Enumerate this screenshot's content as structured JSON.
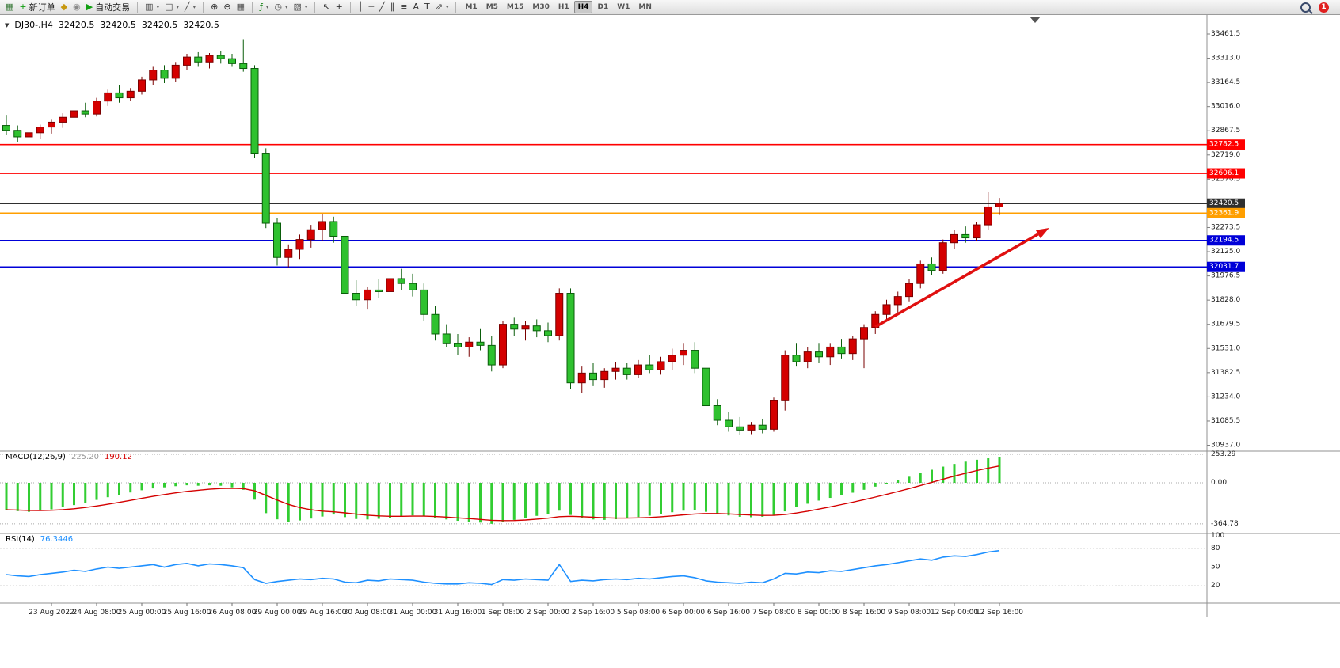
{
  "toolbar": {
    "notification_count": "1",
    "groups": [
      {
        "name": "standard",
        "items": [
          {
            "name": "new-chart-icon",
            "glyph": "▦",
            "color": "#3f7d3f"
          },
          {
            "name": "new-order-button",
            "glyph": "+",
            "color": "#0f9d0f",
            "label": "新订单"
          },
          {
            "name": "metaeditor-icon",
            "glyph": "◆",
            "color": "#c79810"
          },
          {
            "name": "broadcast-icon",
            "glyph": "◉",
            "color": "#8a8a8a"
          },
          {
            "name": "autotrading-button",
            "glyph": "▶",
            "color": "#12a012",
            "label": "自动交易"
          }
        ]
      },
      {
        "name": "chart-types",
        "items": [
          {
            "name": "bar-chart-icon",
            "glyph": "▥",
            "color": "#444444",
            "caret": true
          },
          {
            "name": "candlestick-chart-icon",
            "glyph": "◫",
            "color": "#444444",
            "caret": true
          },
          {
            "name": "line-chart-icon",
            "glyph": "╱",
            "color": "#444444",
            "caret": true
          }
        ]
      },
      {
        "name": "zoom",
        "items": [
          {
            "name": "zoom-in-icon",
            "glyph": "⊕",
            "color": "#333333"
          },
          {
            "name": "zoom-out-icon",
            "glyph": "⊖",
            "color": "#333333"
          },
          {
            "name": "tile-windows-icon",
            "glyph": "▦",
            "color": "#555555"
          }
        ]
      },
      {
        "name": "chart-tools",
        "items": [
          {
            "name": "indicators-icon",
            "glyph": "ƒ",
            "color": "#0a7d0a",
            "caret": true
          },
          {
            "name": "periods-icon",
            "glyph": "◷",
            "color": "#555555",
            "caret": true
          },
          {
            "name": "templates-icon",
            "glyph": "▧",
            "color": "#555555",
            "caret": true
          }
        ]
      },
      {
        "name": "cursor-tools",
        "items": [
          {
            "name": "cursor-icon",
            "glyph": "↖",
            "color": "#333333"
          },
          {
            "name": "crosshair-icon",
            "glyph": "+",
            "color": "#333333"
          }
        ]
      },
      {
        "name": "drawing-tools",
        "items": [
          {
            "name": "vertical-line-icon",
            "glyph": "│",
            "color": "#333333"
          },
          {
            "name": "horizontal-line-icon",
            "glyph": "─",
            "color": "#333333"
          },
          {
            "name": "trendline-icon",
            "glyph": "╱",
            "color": "#333333"
          },
          {
            "name": "channel-icon",
            "glyph": "∥",
            "color": "#333333"
          },
          {
            "name": "fibonacci-icon",
            "glyph": "≡",
            "color": "#333333"
          },
          {
            "name": "text-icon",
            "glyph": "A",
            "color": "#333333"
          },
          {
            "name": "label-icon",
            "glyph": "T",
            "color": "#333333"
          },
          {
            "name": "arrows-icon",
            "glyph": "⇗",
            "color": "#333333",
            "caret": true
          }
        ]
      },
      {
        "name": "timeframes",
        "items": [
          {
            "name": "timeframe-m1",
            "label": "M1"
          },
          {
            "name": "timeframe-m5",
            "label": "M5"
          },
          {
            "name": "timeframe-m15",
            "label": "M15"
          },
          {
            "name": "timeframe-m30",
            "label": "M30"
          },
          {
            "name": "timeframe-h1",
            "label": "H1"
          },
          {
            "name": "timeframe-h4",
            "label": "H4",
            "active": true
          },
          {
            "name": "timeframe-d1",
            "label": "D1"
          },
          {
            "name": "timeframe-w1",
            "label": "W1"
          },
          {
            "name": "timeframe-mn",
            "label": "MN"
          }
        ]
      }
    ]
  },
  "chart": {
    "title": {
      "toggle_glyph": "▼",
      "symbol_period": "DJ30-,H4",
      "open": "32420.5",
      "high": "32420.5",
      "low": "32420.5",
      "close": "32420.5"
    },
    "macd_header": {
      "name": "MACD(12,26,9)",
      "macd_value": "225.20",
      "signal_value": "190.12"
    },
    "rsi_header": {
      "name": "RSI(14)",
      "value": "76.3446"
    }
  },
  "colors": {
    "background": "#ffffff",
    "bull_candle": "#d40000",
    "bull_border": "#7a0000",
    "bear_candle": "#2fc12f",
    "bear_border": "#0a5d0a",
    "macd_histogram": "#32cd32",
    "macd_signal": "#d40000",
    "rsi_line": "#1e90ff",
    "grid_dotted": "#a8a8a8",
    "separator": "#909090",
    "axis_text": "#1a1a1a",
    "macd_value_color": "#9a9a9a",
    "signal_value_color": "#d40000",
    "rsi_value_color": "#1e90ff",
    "arrow_color": "#e01010",
    "badge_text": "#ffffff"
  },
  "chart_data": {
    "type": "candlestick",
    "symbol": "DJ30-",
    "timeframe": "H4",
    "price_axis": {
      "labels": [
        "33461.5",
        "33313.0",
        "33164.5",
        "33016.0",
        "32867.5",
        "32719.0",
        "32570.5",
        "32422.0",
        "32273.5",
        "32125.0",
        "31976.5",
        "31828.0",
        "31679.5",
        "31531.0",
        "31382.5",
        "31234.0",
        "31085.5",
        "30937.0"
      ]
    },
    "levels": [
      {
        "price": 32782.5,
        "label": "32782.5",
        "color": "#ff0000",
        "type": "resistance-line"
      },
      {
        "price": 32606.1,
        "label": "32606.1",
        "color": "#ff0000",
        "type": "resistance-line"
      },
      {
        "price": 32420.5,
        "label": "32420.5",
        "color": "#2f2f2f",
        "type": "current-price"
      },
      {
        "price": 32361.9,
        "label": "32361.9",
        "color": "#ff9f00",
        "type": "pivot-line"
      },
      {
        "price": 32194.5,
        "label": "32194.5",
        "color": "#0000d8",
        "type": "support-line"
      },
      {
        "price": 32031.7,
        "label": "32031.7",
        "color": "#0000d8",
        "type": "support-line"
      }
    ],
    "time_axis": {
      "labels": [
        "23 Aug 2022",
        "24 Aug 08:00",
        "25 Aug 00:00",
        "25 Aug 16:00",
        "26 Aug 08:00",
        "29 Aug 00:00",
        "29 Aug 16:00",
        "30 Aug 08:00",
        "31 Aug 00:00",
        "31 Aug 16:00",
        "1 Sep 08:00",
        "2 Sep 00:00",
        "2 Sep 16:00",
        "5 Sep 08:00",
        "6 Sep 00:00",
        "6 Sep 16:00",
        "7 Sep 08:00",
        "8 Sep 00:00",
        "8 Sep 16:00",
        "9 Sep 08:00",
        "12 Sep 00:00",
        "12 Sep 16:00"
      ]
    },
    "candles": [
      [
        32900,
        32965,
        32840,
        32870
      ],
      [
        32870,
        32900,
        32800,
        32830
      ],
      [
        32830,
        32870,
        32780,
        32855
      ],
      [
        32855,
        32905,
        32820,
        32890
      ],
      [
        32890,
        32940,
        32850,
        32920
      ],
      [
        32920,
        32975,
        32885,
        32950
      ],
      [
        32950,
        33010,
        32920,
        32990
      ],
      [
        32990,
        33040,
        32950,
        32970
      ],
      [
        32970,
        33070,
        32955,
        33050
      ],
      [
        33050,
        33120,
        33020,
        33100
      ],
      [
        33100,
        33150,
        33040,
        33070
      ],
      [
        33070,
        33130,
        33050,
        33110
      ],
      [
        33110,
        33200,
        33090,
        33180
      ],
      [
        33180,
        33260,
        33150,
        33240
      ],
      [
        33240,
        33270,
        33160,
        33190
      ],
      [
        33190,
        33290,
        33170,
        33270
      ],
      [
        33270,
        33340,
        33240,
        33320
      ],
      [
        33320,
        33350,
        33260,
        33290
      ],
      [
        33290,
        33345,
        33250,
        33330
      ],
      [
        33330,
        33355,
        33280,
        33310
      ],
      [
        33310,
        33340,
        33260,
        33280
      ],
      [
        33280,
        33430,
        33230,
        33250
      ],
      [
        33250,
        33270,
        32700,
        32730
      ],
      [
        32730,
        32760,
        32270,
        32300
      ],
      [
        32300,
        32330,
        32040,
        32090
      ],
      [
        32090,
        32170,
        32030,
        32140
      ],
      [
        32140,
        32230,
        32080,
        32200
      ],
      [
        32200,
        32290,
        32150,
        32260
      ],
      [
        32260,
        32355,
        32190,
        32310
      ],
      [
        32310,
        32340,
        32180,
        32220
      ],
      [
        32220,
        32300,
        31830,
        31870
      ],
      [
        31870,
        31950,
        31790,
        31830
      ],
      [
        31830,
        31910,
        31770,
        31890
      ],
      [
        31890,
        31960,
        31840,
        31880
      ],
      [
        31880,
        31990,
        31830,
        31960
      ],
      [
        31960,
        32020,
        31890,
        31930
      ],
      [
        31930,
        31990,
        31850,
        31890
      ],
      [
        31890,
        31930,
        31700,
        31740
      ],
      [
        31740,
        31790,
        31580,
        31620
      ],
      [
        31620,
        31680,
        31540,
        31560
      ],
      [
        31560,
        31620,
        31490,
        31540
      ],
      [
        31540,
        31600,
        31480,
        31570
      ],
      [
        31570,
        31650,
        31520,
        31550
      ],
      [
        31550,
        31610,
        31390,
        31430
      ],
      [
        31430,
        31700,
        31410,
        31680
      ],
      [
        31680,
        31720,
        31610,
        31650
      ],
      [
        31650,
        31700,
        31580,
        31670
      ],
      [
        31670,
        31710,
        31600,
        31640
      ],
      [
        31640,
        31690,
        31570,
        31610
      ],
      [
        31610,
        31900,
        31580,
        31870
      ],
      [
        31870,
        31900,
        31280,
        31320
      ],
      [
        31320,
        31420,
        31260,
        31380
      ],
      [
        31380,
        31440,
        31300,
        31340
      ],
      [
        31340,
        31410,
        31290,
        31390
      ],
      [
        31390,
        31450,
        31340,
        31410
      ],
      [
        31410,
        31440,
        31340,
        31370
      ],
      [
        31370,
        31460,
        31350,
        31430
      ],
      [
        31430,
        31490,
        31380,
        31400
      ],
      [
        31400,
        31480,
        31370,
        31450
      ],
      [
        31450,
        31530,
        31400,
        31490
      ],
      [
        31490,
        31560,
        31430,
        31520
      ],
      [
        31520,
        31570,
        31380,
        31410
      ],
      [
        31410,
        31450,
        31150,
        31180
      ],
      [
        31180,
        31220,
        31060,
        31090
      ],
      [
        31090,
        31140,
        31020,
        31050
      ],
      [
        31050,
        31110,
        31000,
        31030
      ],
      [
        31030,
        31080,
        31005,
        31060
      ],
      [
        31060,
        31100,
        31010,
        31035
      ],
      [
        31035,
        31230,
        31020,
        31210
      ],
      [
        31210,
        31520,
        31150,
        31490
      ],
      [
        31490,
        31560,
        31420,
        31450
      ],
      [
        31450,
        31540,
        31410,
        31510
      ],
      [
        31510,
        31560,
        31440,
        31480
      ],
      [
        31480,
        31560,
        31430,
        31540
      ],
      [
        31540,
        31590,
        31470,
        31500
      ],
      [
        31500,
        31610,
        31460,
        31590
      ],
      [
        31590,
        31680,
        31410,
        31660
      ],
      [
        31660,
        31760,
        31620,
        31740
      ],
      [
        31740,
        31830,
        31700,
        31800
      ],
      [
        31800,
        31880,
        31750,
        31850
      ],
      [
        31850,
        31960,
        31820,
        31930
      ],
      [
        31930,
        32070,
        31900,
        32050
      ],
      [
        32050,
        32090,
        31980,
        32010
      ],
      [
        32010,
        32200,
        31990,
        32180
      ],
      [
        32180,
        32260,
        32140,
        32230
      ],
      [
        32230,
        32280,
        32180,
        32210
      ],
      [
        32210,
        32310,
        32190,
        32290
      ],
      [
        32290,
        32490,
        32260,
        32400
      ],
      [
        32400,
        32455,
        32350,
        32420.5
      ]
    ],
    "macd": {
      "params": "12,26,9",
      "signal_period": 9,
      "current_macd": 225.2,
      "current_signal": 190.12,
      "scale": [
        {
          "value": 253.29,
          "label": "253.29"
        },
        {
          "value": 0,
          "label": "0.00"
        },
        {
          "value": -364.78,
          "label": "-364.78"
        }
      ],
      "histogram": [
        -240,
        -252,
        -258,
        -250,
        -236,
        -218,
        -198,
        -176,
        -152,
        -128,
        -106,
        -86,
        -66,
        -50,
        -40,
        -30,
        -22,
        -26,
        -22,
        -26,
        -40,
        -62,
        -150,
        -270,
        -325,
        -345,
        -335,
        -318,
        -300,
        -282,
        -305,
        -322,
        -326,
        -320,
        -310,
        -298,
        -290,
        -298,
        -312,
        -326,
        -338,
        -346,
        -354,
        -364.78,
        -350,
        -330,
        -312,
        -294,
        -278,
        -248,
        -286,
        -314,
        -326,
        -330,
        -324,
        -316,
        -304,
        -292,
        -278,
        -262,
        -248,
        -246,
        -258,
        -274,
        -290,
        -302,
        -306,
        -302,
        -286,
        -254,
        -218,
        -186,
        -158,
        -134,
        -112,
        -88,
        -62,
        -34,
        -6,
        24,
        54,
        86,
        116,
        144,
        168,
        188,
        205,
        218,
        225.2
      ]
    },
    "rsi": {
      "period": 14,
      "current": 76.3446,
      "scale": [
        {
          "value": 100,
          "label": "100",
          "line": false
        },
        {
          "value": 80,
          "label": "80",
          "line": true
        },
        {
          "value": 50,
          "label": "50",
          "line": true
        },
        {
          "value": 20,
          "label": "20",
          "line": true
        }
      ],
      "values": [
        38,
        36,
        35,
        38,
        40,
        42,
        45,
        43,
        47,
        50,
        48,
        50,
        52,
        54,
        50,
        54,
        56,
        52,
        55,
        54,
        52,
        49,
        30,
        24,
        27,
        29,
        31,
        30,
        32,
        31,
        26,
        25,
        29,
        28,
        31,
        30,
        29,
        26,
        24,
        23,
        23,
        25,
        24,
        22,
        30,
        29,
        31,
        30,
        29,
        54,
        27,
        29,
        28,
        30,
        31,
        30,
        32,
        31,
        33,
        35,
        36,
        33,
        28,
        26,
        25,
        24,
        26,
        25,
        31,
        40,
        39,
        42,
        41,
        44,
        43,
        46,
        49,
        52,
        54,
        57,
        60,
        63,
        61,
        66,
        68,
        67,
        70,
        74,
        76.3446
      ]
    },
    "arrow_annotation": {
      "from_index": 77,
      "from_price": 31664,
      "to_index": 92.4,
      "to_price": 32271,
      "color": "#e01010"
    }
  }
}
